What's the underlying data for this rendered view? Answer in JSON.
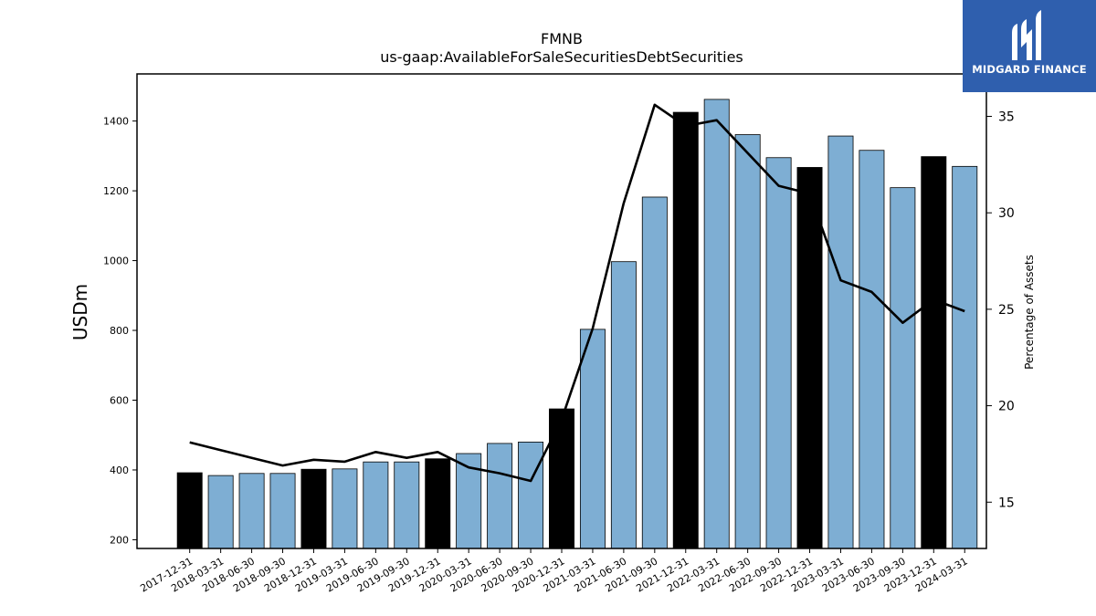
{
  "chart_data": {
    "type": "bar",
    "title": "FMNB",
    "subtitle": "us-gaap:AvailableForSaleSecuritiesDebtSecurities",
    "ylabel": "USDm",
    "y2label": "Percentage of Assets",
    "categories": [
      "2017-12-31",
      "2018-03-31",
      "2018-06-30",
      "2018-09-30",
      "2018-12-31",
      "2019-03-31",
      "2019-06-30",
      "2019-09-30",
      "2019-12-31",
      "2020-03-31",
      "2020-06-30",
      "2020-09-30",
      "2020-12-31",
      "2021-03-31",
      "2021-06-30",
      "2021-09-30",
      "2021-12-31",
      "2022-03-31",
      "2022-06-30",
      "2022-09-30",
      "2022-12-31",
      "2023-03-31",
      "2023-06-30",
      "2023-09-30",
      "2023-12-31",
      "2024-03-31"
    ],
    "series": [
      {
        "type": "bar",
        "values": [
          392,
          384,
          390,
          390,
          402,
          403,
          423,
          423,
          432,
          447,
          476,
          480,
          575,
          803,
          997,
          1182,
          1425,
          1462,
          1361,
          1295,
          1267,
          1357,
          1316,
          1209,
          1298,
          1270
        ],
        "year_end_flags": [
          true,
          false,
          false,
          false,
          true,
          false,
          false,
          false,
          true,
          false,
          false,
          false,
          true,
          false,
          false,
          false,
          true,
          false,
          false,
          false,
          true,
          false,
          false,
          false,
          true,
          false
        ]
      },
      {
        "type": "line",
        "axis": "right",
        "values": [
          18.1,
          17.7,
          17.3,
          16.9,
          17.2,
          17.1,
          17.6,
          17.3,
          17.6,
          16.8,
          16.5,
          16.1,
          19.3,
          24.0,
          30.5,
          35.6,
          34.5,
          34.8,
          33.1,
          31.4,
          31.0,
          26.5,
          25.9,
          24.3,
          25.5,
          24.9
        ]
      }
    ],
    "ylim": [
      175,
      1535
    ],
    "y2lim": [
      12.6,
      37.2
    ],
    "yticks": [
      200,
      400,
      600,
      800,
      1000,
      1200,
      1400
    ],
    "y2ticks": [
      15,
      20,
      25,
      30,
      35
    ],
    "grid": false,
    "colors": {
      "bar": "#7eaed3",
      "bar_year_end": "#000000",
      "line": "#000000",
      "edge": "#000000"
    }
  },
  "logo": {
    "text": "MIDGARD FINANCE",
    "background": "#2f5fae"
  }
}
